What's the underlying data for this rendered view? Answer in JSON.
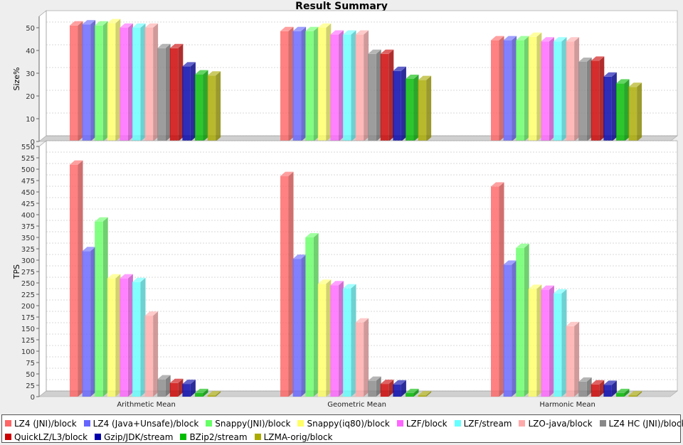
{
  "chart_data": {
    "title": "Result Summary",
    "type": "bar",
    "categories": [
      "Arithmetic Mean",
      "Geometric Mean",
      "Harmonic Mean"
    ],
    "series": [
      {
        "name": "LZ4 (JNI)/block",
        "color": "#ff6666",
        "size": [
          51,
          48.5,
          44.5
        ],
        "tps": [
          510,
          485,
          462
        ]
      },
      {
        "name": "LZ4 (Java+Unsafe)/block",
        "color": "#6666ff",
        "size": [
          51.5,
          48.5,
          44.5
        ],
        "tps": [
          320,
          303,
          290
        ]
      },
      {
        "name": "Snappy(JNI)/block",
        "color": "#66ff66",
        "size": [
          51,
          48.5,
          44.5
        ],
        "tps": [
          385,
          350,
          327
        ]
      },
      {
        "name": "Snappy(iq80)/block",
        "color": "#ffff66",
        "size": [
          52,
          50,
          46
        ],
        "tps": [
          260,
          248,
          237
        ]
      },
      {
        "name": "LZF/block",
        "color": "#ff66ff",
        "size": [
          50,
          47,
          44
        ],
        "tps": [
          260,
          245,
          235
        ]
      },
      {
        "name": "LZF/stream",
        "color": "#66ffff",
        "size": [
          50,
          47,
          44
        ],
        "tps": [
          252,
          238,
          227
        ]
      },
      {
        "name": "LZO-java/block",
        "color": "#ffaaaa",
        "size": [
          50,
          47,
          44
        ],
        "tps": [
          178,
          163,
          155
        ]
      },
      {
        "name": "LZ4 HC (JNI)/block",
        "color": "#888888",
        "size": [
          41,
          38.5,
          35
        ],
        "tps": [
          38,
          35,
          33
        ]
      },
      {
        "name": "QuickLZ/L3/block",
        "color": "#cc0000",
        "size": [
          41,
          38.5,
          35.5
        ],
        "tps": [
          30,
          28,
          27
        ]
      },
      {
        "name": "Gzip/JDK/stream",
        "color": "#0000aa",
        "size": [
          33,
          31,
          28.5
        ],
        "tps": [
          28,
          27,
          26
        ]
      },
      {
        "name": "BZip2/stream",
        "color": "#00bb00",
        "size": [
          29.5,
          27.5,
          25.5
        ],
        "tps": [
          8,
          8,
          8
        ]
      },
      {
        "name": "LZMA-orig/block",
        "color": "#aaaa00",
        "size": [
          29,
          27,
          24
        ],
        "tps": [
          3,
          3,
          3
        ]
      }
    ],
    "panels": [
      {
        "ylabel": "Size%",
        "ylim": [
          0,
          55
        ],
        "ticks": [
          0,
          10,
          20,
          30,
          40,
          50
        ],
        "metric": "size"
      },
      {
        "ylabel": "TPS",
        "ylim": [
          0,
          550
        ],
        "ticks": [
          0,
          25,
          50,
          75,
          100,
          125,
          150,
          175,
          200,
          225,
          250,
          275,
          300,
          325,
          350,
          375,
          400,
          425,
          450,
          475,
          500,
          525,
          550
        ],
        "metric": "tps"
      }
    ],
    "legend_position": "bottom"
  }
}
